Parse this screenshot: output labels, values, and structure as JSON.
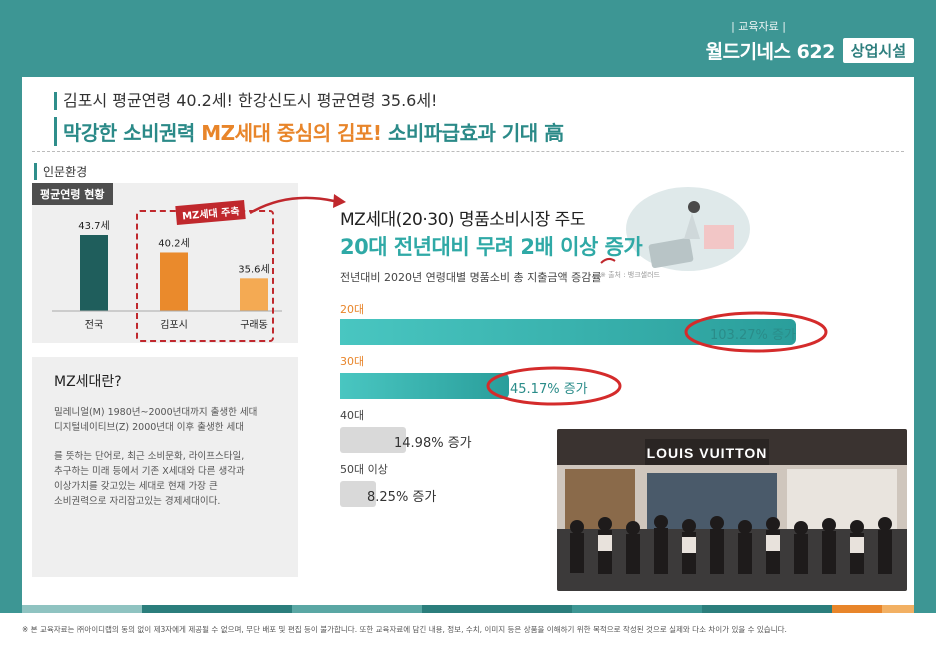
{
  "brand": {
    "sub": "| 교육자료 |",
    "title": "월드기네스 622",
    "badge": "상업시설"
  },
  "header": {
    "sub": "김포시 평균연령 40.2세! 한강신도시 평균연령 35.6세!",
    "main_a": "막강한 소비권력 ",
    "main_hl": "MZ세대 중심의 김포!",
    "main_b": " 소비파급효과 기대 高"
  },
  "section_label": "인문환경",
  "age_panel": {
    "tag": "평균연령 현황",
    "mz_label": "MZ세대 주축"
  },
  "chart_data": {
    "type": "bar",
    "categories": [
      "전국",
      "김포시",
      "구래동"
    ],
    "values": [
      43.7,
      40.2,
      35.6
    ],
    "value_labels": [
      "43.7세",
      "40.2세",
      "35.6세"
    ],
    "colors": [
      "#1f5e5c",
      "#ea8a2c",
      "#f4aa53"
    ]
  },
  "mz_info": {
    "title": "MZ세대란?",
    "p1a": "밀레니얼(M) 1980년~2000년대까지 출생한 세대",
    "p1b": "디지털네이티브(Z) 2000년대 이후 출생한 세대",
    "p2a": "를 뜻하는 단어로, 최근 소비문화, 라이프스타일,",
    "p2b": "추구하는 미래 등에서 기존 X세대와 다른 생각과",
    "p2c": "이상가치를 갖고있는 세대로 현재 가장 큰",
    "p2d": "소비권력으로 자리잡고있는 경제세대이다."
  },
  "luxury": {
    "title": "MZ세대(20·30) 명품소비시장 주도",
    "subtitle": "20대 전년대비 무려 2배 이상 증가",
    "note": "전년대비 2020년 연령대별 명품소비 총 지출금액 증감률",
    "source": "※ 출처 : 뱅크샐러드",
    "rows": [
      {
        "label": "20대",
        "value": 103.27,
        "text": "103.27% 증가"
      },
      {
        "label": "30대",
        "value": 45.17,
        "text": "45.17% 증가"
      },
      {
        "label": "40대",
        "value": 14.98,
        "text": "14.98% 증가"
      },
      {
        "label": "50대 이상",
        "value": 8.25,
        "text": "8.25% 증가"
      }
    ]
  },
  "store_sign": "LOUIS VUITTON",
  "footer": "※ 본 교육자료는 ㈜아이디랩의 동의 없이 제3자에게 제공될 수 없으며, 무단 배포 및 편집 등이 불가합니다. 또한 교육자료에 담긴 내용, 정보, 수치, 이미지 등은 상품을 이해하기 위한 목적으로 작성된 것으로 실제와 다소 차이가 있을 수 있습니다."
}
